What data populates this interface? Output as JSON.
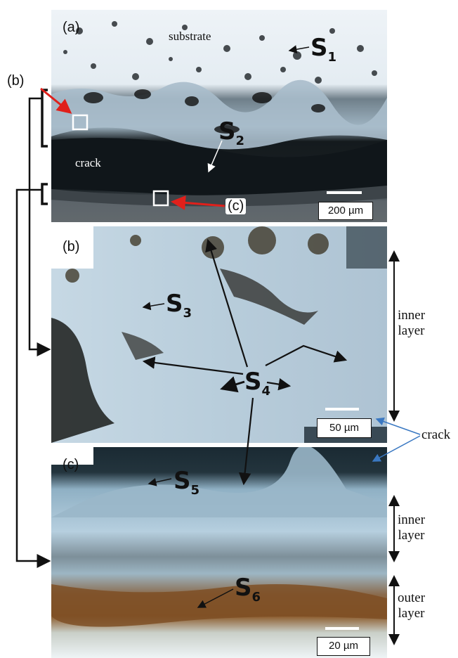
{
  "panels": {
    "a": {
      "label": "(a)",
      "substrate": "substrate",
      "crack": "crack",
      "scale": "200 µm",
      "callout_b": "(b)",
      "callout_c": "(c)",
      "tiny_scale": "200 µm"
    },
    "b": {
      "label": "(b)",
      "scale": "50 µm",
      "tiny_scale": "50 µm"
    },
    "c": {
      "label": "(c)",
      "scale": "20 µm",
      "tiny_scale": "20 µm"
    }
  },
  "left_label": "(b)",
  "side_labels": {
    "inner_layer_b": [
      "inner",
      "layer"
    ],
    "crack": "crack",
    "inner_layer_c": [
      "inner",
      "layer"
    ],
    "outer_layer": [
      "outer",
      "layer"
    ]
  },
  "spots": {
    "s1": {
      "letter": "S",
      "index": "1"
    },
    "s2": {
      "letter": "S",
      "index": "2"
    },
    "s3": {
      "letter": "S",
      "index": "3"
    },
    "s4": {
      "letter": "S",
      "index": "4"
    },
    "s5": {
      "letter": "S",
      "index": "5"
    },
    "s6": {
      "letter": "S",
      "index": "6"
    }
  },
  "colors": {
    "callout_arrow": "#e0201b",
    "crack_arrow": "#3a78c2",
    "box": "#ffffff"
  }
}
